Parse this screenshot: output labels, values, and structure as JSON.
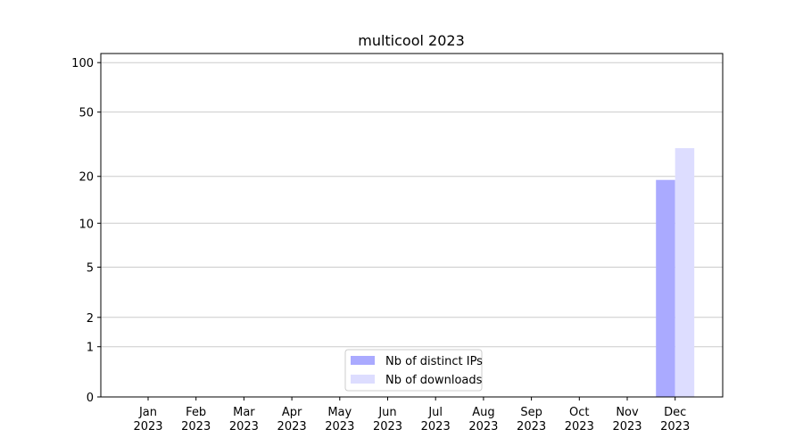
{
  "chart_data": {
    "type": "bar",
    "title": "multicool 2023",
    "categories": [
      [
        "Jan",
        "2023"
      ],
      [
        "Feb",
        "2023"
      ],
      [
        "Mar",
        "2023"
      ],
      [
        "Apr",
        "2023"
      ],
      [
        "May",
        "2023"
      ],
      [
        "Jun",
        "2023"
      ],
      [
        "Jul",
        "2023"
      ],
      [
        "Aug",
        "2023"
      ],
      [
        "Sep",
        "2023"
      ],
      [
        "Oct",
        "2023"
      ],
      [
        "Nov",
        "2023"
      ],
      [
        "Dec",
        "2023"
      ]
    ],
    "series": [
      {
        "name": "Nb of distinct IPs",
        "color": "#aaaaff",
        "values": [
          0,
          0,
          0,
          0,
          0,
          0,
          0,
          0,
          0,
          0,
          0,
          19
        ]
      },
      {
        "name": "Nb of downloads",
        "color": "#ddddff",
        "values": [
          0,
          0,
          0,
          0,
          0,
          0,
          0,
          0,
          0,
          0,
          0,
          30
        ]
      }
    ],
    "yscale": "log1p",
    "ylim": [
      0,
      113.5
    ],
    "yticks": [
      0,
      1,
      2,
      5,
      10,
      20,
      50,
      100
    ],
    "grid": true,
    "legend": "lower center"
  }
}
